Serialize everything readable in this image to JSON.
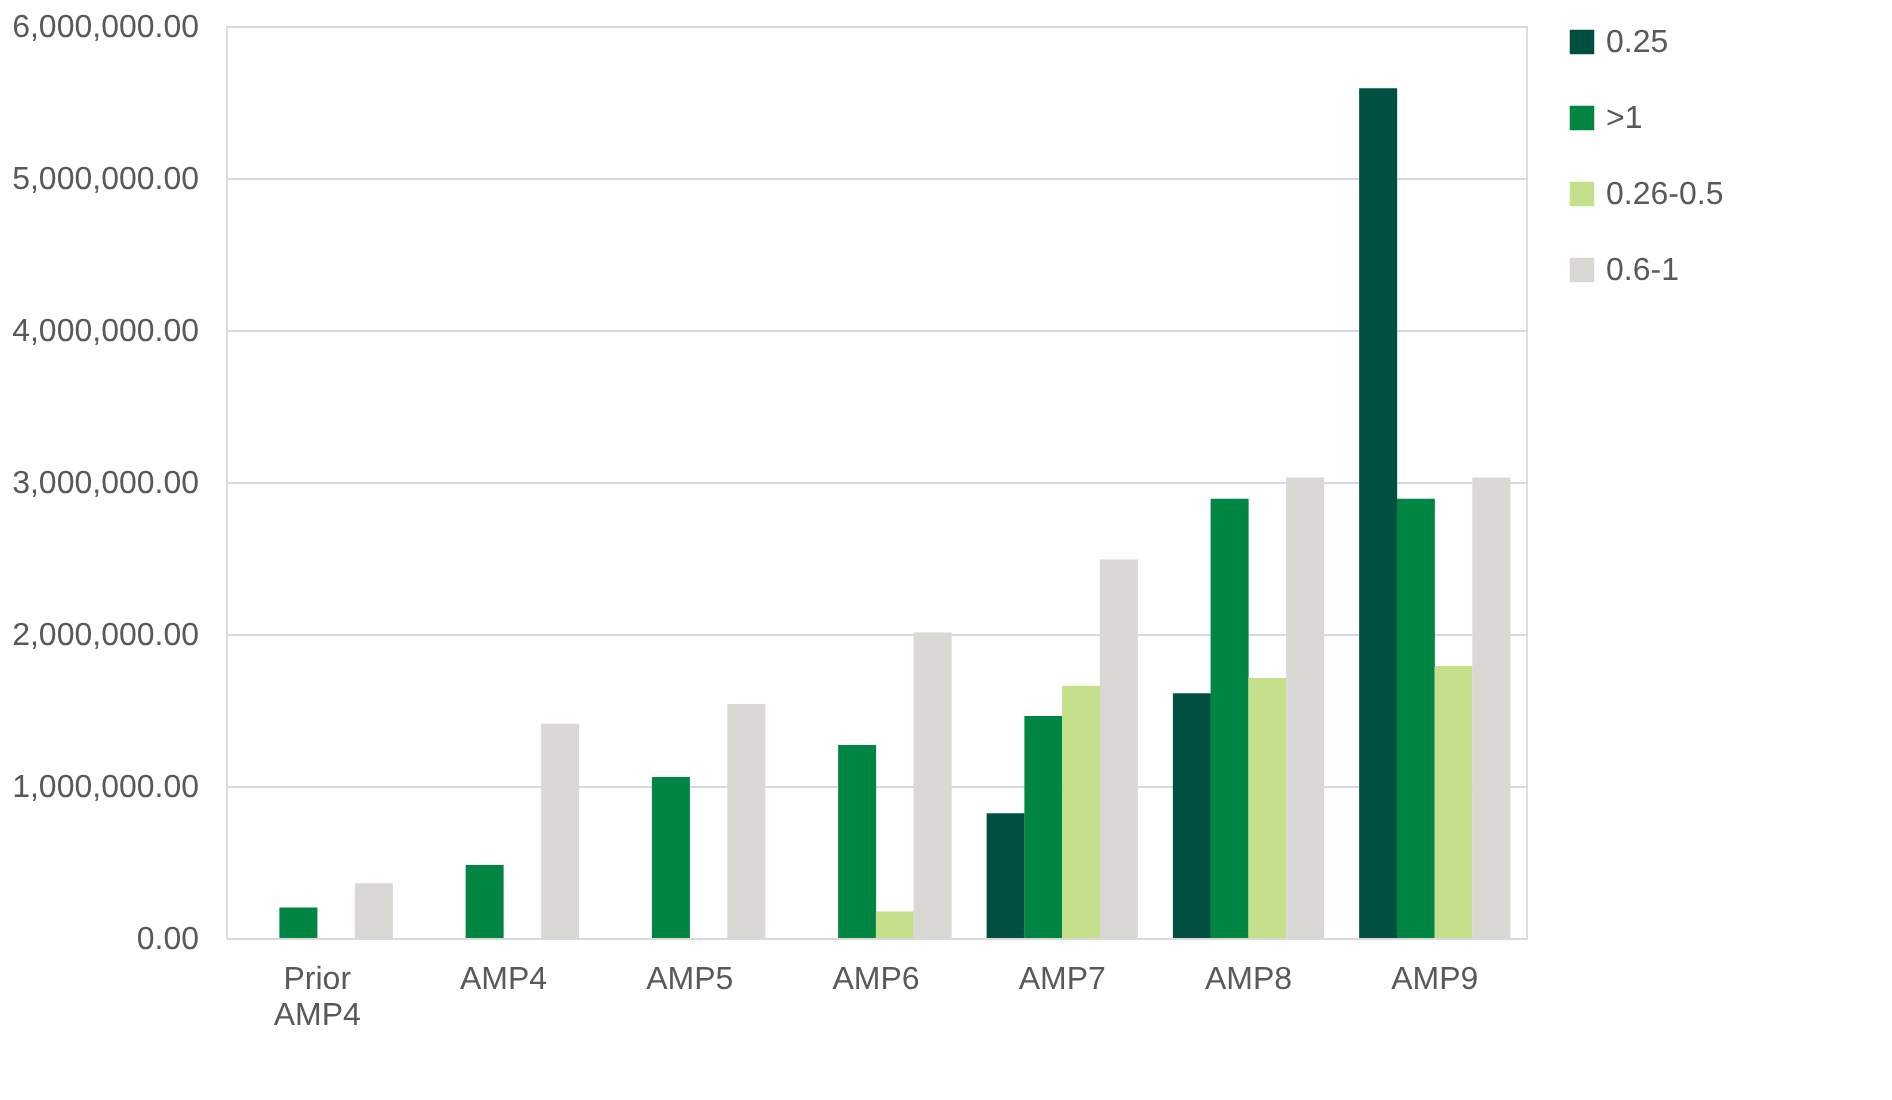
{
  "chart_data": {
    "type": "bar",
    "categories": [
      "Prior AMP4",
      "AMP4",
      "AMP5",
      "AMP6",
      "AMP7",
      "AMP8",
      "AMP9"
    ],
    "series": [
      {
        "name": "0.25",
        "color": "#005042",
        "values": [
          null,
          null,
          null,
          null,
          820000,
          1610000,
          5590000
        ]
      },
      {
        "name": ">1",
        "color": "#008542",
        "values": [
          200000,
          480000,
          1060000,
          1270000,
          1460000,
          2890000,
          2890000
        ]
      },
      {
        "name": "0.26-0.5",
        "color": "#c5e08a",
        "values": [
          null,
          null,
          null,
          175000,
          1660000,
          1710000,
          1790000
        ]
      },
      {
        "name": "0.6-1",
        "color": "#d9d8d4",
        "values": [
          360000,
          1410000,
          1540000,
          2010000,
          2490000,
          3030000,
          3030000
        ]
      }
    ],
    "ylim": [
      0,
      6000000
    ],
    "yticks": [
      {
        "value": 0,
        "label": "0.00"
      },
      {
        "value": 1000000,
        "label": "1,000,000.00"
      },
      {
        "value": 2000000,
        "label": "2,000,000.00"
      },
      {
        "value": 3000000,
        "label": "3,000,000.00"
      },
      {
        "value": 4000000,
        "label": "4,000,000.00"
      },
      {
        "value": 5000000,
        "label": "5,000,000.00"
      },
      {
        "value": 6000000,
        "label": "6,000,000.00"
      }
    ],
    "grid": "y",
    "legend": "right"
  }
}
